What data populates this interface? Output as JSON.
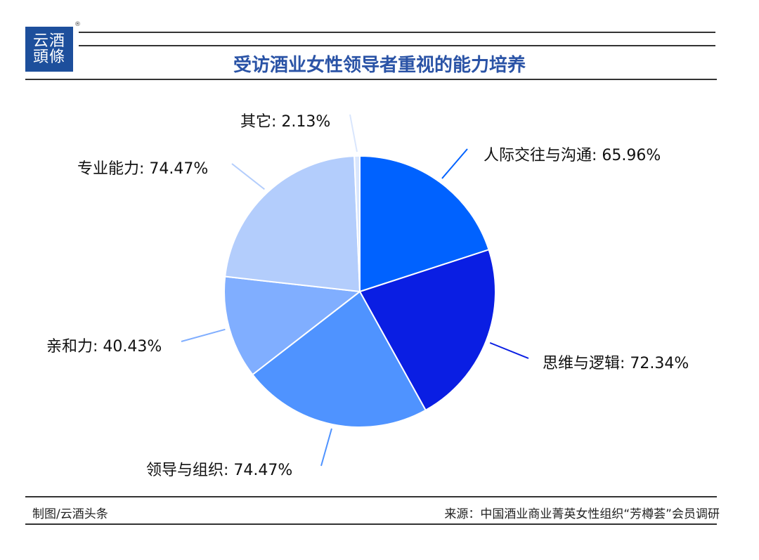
{
  "header": {
    "logo_line1": "云酒",
    "logo_line2": "頭條",
    "registered_mark": "®",
    "title": "受访酒业女性领导者重视的能力培养"
  },
  "chart_data": {
    "type": "pie",
    "title": "受访酒业女性领导者重视的能力培养",
    "slices": [
      {
        "label": "人际交往与沟通",
        "value": 65.96,
        "display": "65.96%",
        "color": "#0062ff"
      },
      {
        "label": "思维与逻辑",
        "value": 72.34,
        "display": "72.34%",
        "color": "#0a1ee3"
      },
      {
        "label": "领导与组织",
        "value": 74.47,
        "display": "74.47%",
        "color": "#4f93ff"
      },
      {
        "label": "亲和力",
        "value": 40.43,
        "display": "40.43%",
        "color": "#80aeff"
      },
      {
        "label": "专业能力",
        "value": 74.47,
        "display": "74.47%",
        "color": "#b3cdfc"
      },
      {
        "label": "其它",
        "value": 2.13,
        "display": "2.13%",
        "color": "#d9e6fd"
      }
    ]
  },
  "footer": {
    "credit": "制图/云酒头条",
    "source": "来源：中国酒业商业菁英女性组织“芳樽荟”会员调研"
  }
}
